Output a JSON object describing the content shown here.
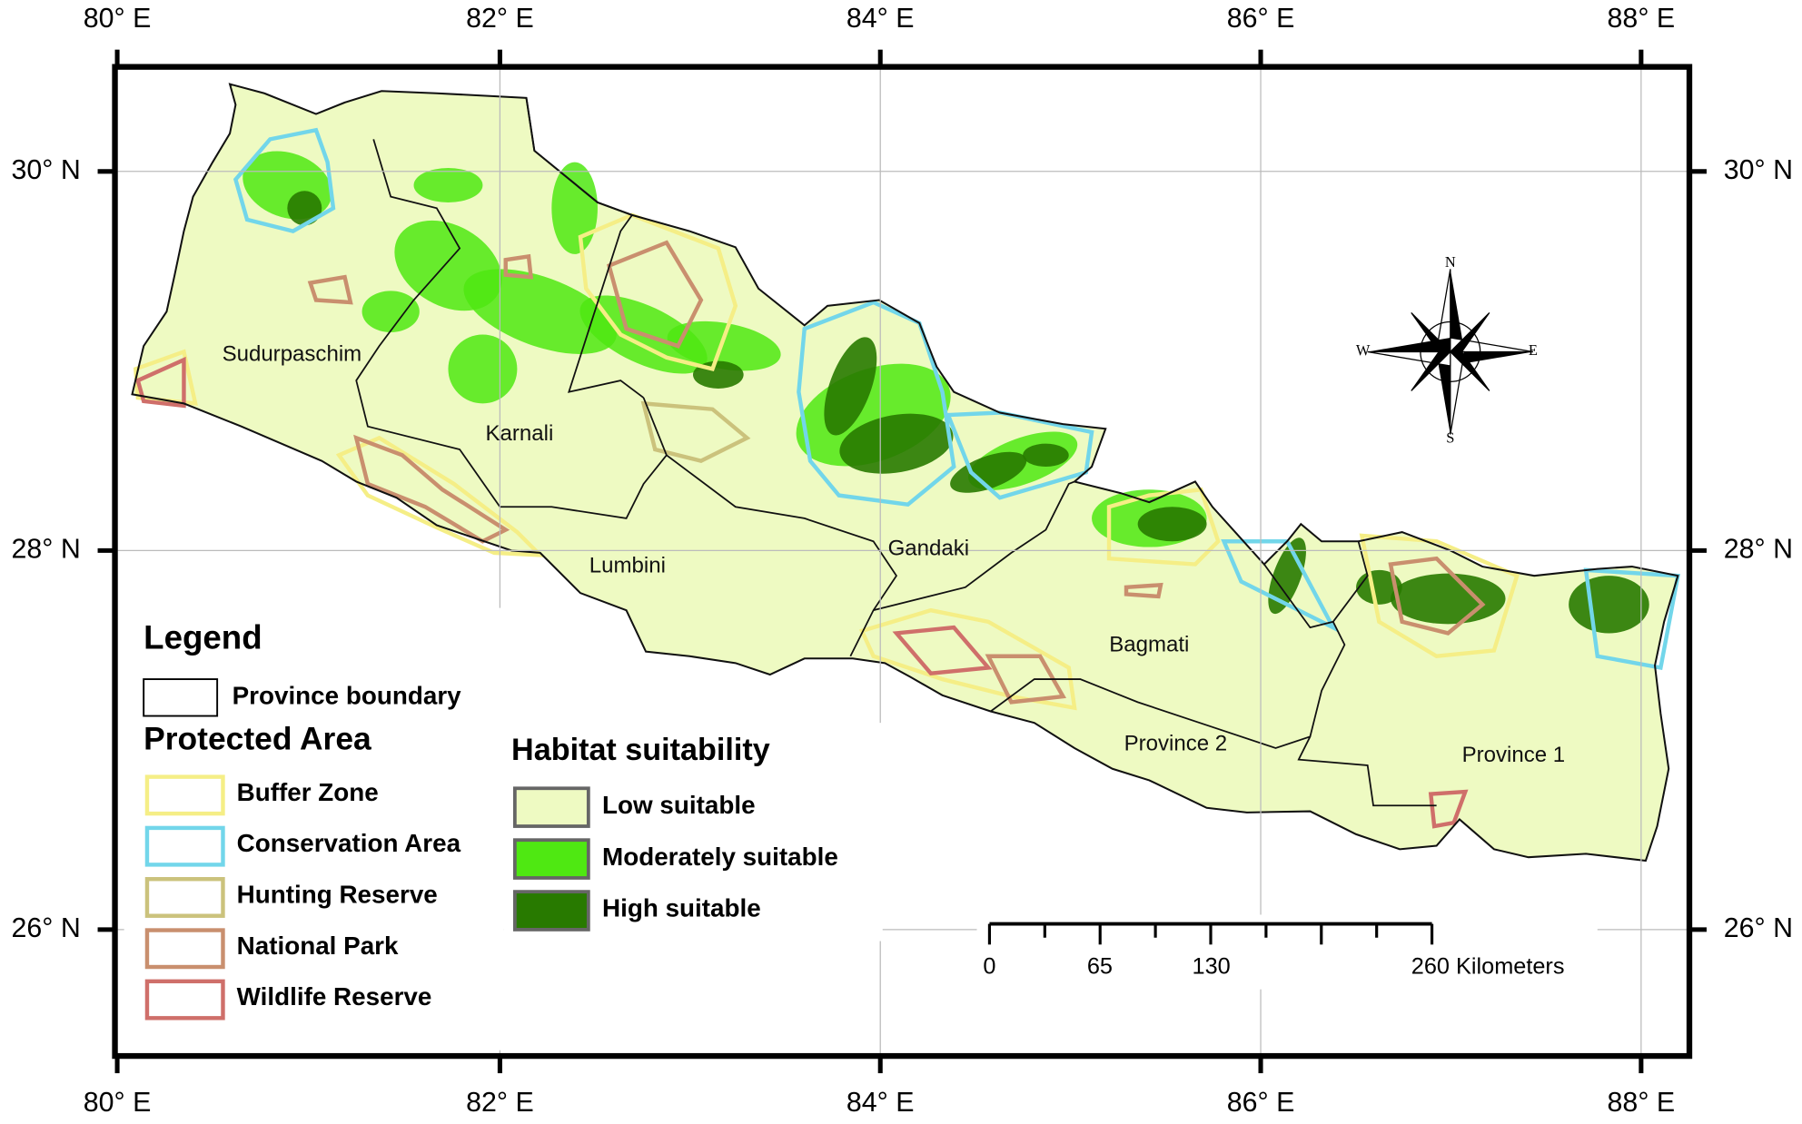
{
  "frame": {
    "top_labels": [
      "80° E",
      "82° E",
      "84° E",
      "86° E",
      "88° E"
    ],
    "bottom_labels": [
      "80° E",
      "82° E",
      "84° E",
      "86° E",
      "88° E"
    ],
    "left_labels": [
      "30° N",
      "28° N",
      "26° N"
    ],
    "right_labels": [
      "30° N",
      "28° N",
      "26° N"
    ]
  },
  "provinces": [
    "Sudurpaschim",
    "Karnali",
    "Lumbini",
    "Gandaki",
    "Bagmati",
    "Province 2",
    "Province 1"
  ],
  "compass": {
    "n": "N",
    "s": "S",
    "e": "E",
    "w": "W"
  },
  "legend": {
    "title": "Legend",
    "boundary": "Province boundary",
    "protected_title": "Protected Area",
    "protected": [
      {
        "label": "Buffer Zone",
        "color": "#f5ee86"
      },
      {
        "label": "Conservation Area",
        "color": "#72d6ea"
      },
      {
        "label": "Hunting Reserve",
        "color": "#cbc27c"
      },
      {
        "label": "National Park",
        "color": "#c98f6e"
      },
      {
        "label": "Wildlife Reserve",
        "color": "#cf6f6a"
      }
    ],
    "habitat_title": "Habitat suitability",
    "habitat": [
      {
        "label": "Low suitable",
        "color": "#eefac2"
      },
      {
        "label": "Moderately suitable",
        "color": "#4fe812"
      },
      {
        "label": "High suitable",
        "color": "#287a00"
      }
    ]
  },
  "scale_bar": {
    "labels": [
      "0",
      "65",
      "130",
      "260 Kilometers"
    ]
  }
}
